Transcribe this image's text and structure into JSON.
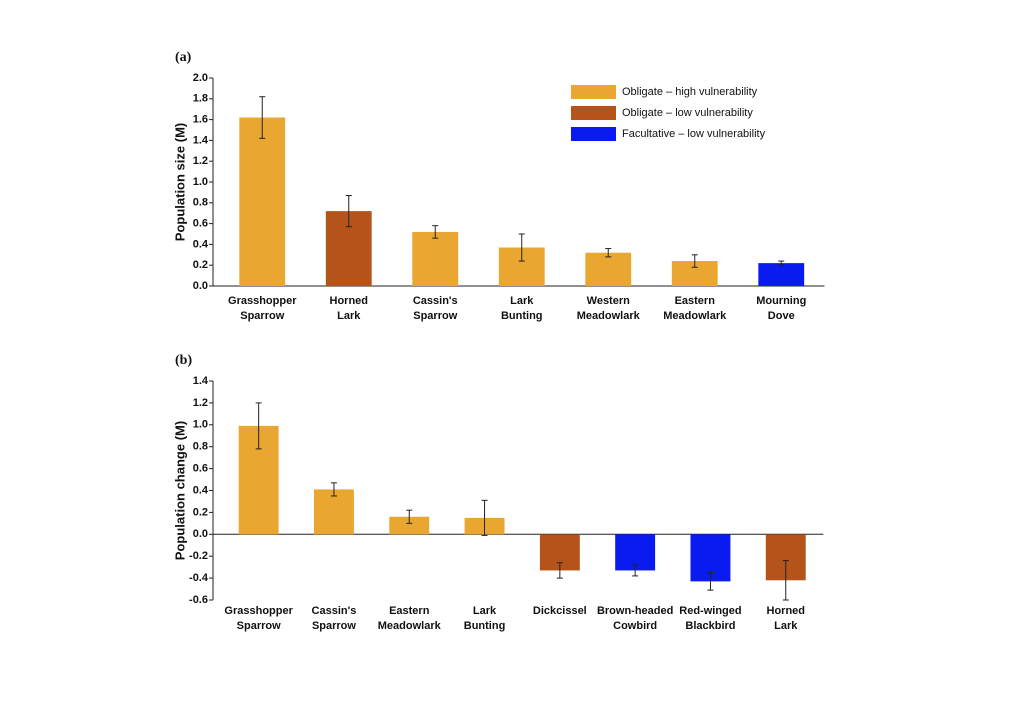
{
  "chart_data": [
    {
      "type": "bar",
      "panel_label": "(a)",
      "ylabel": "Population size (M)",
      "categories": [
        [
          "Grasshopper",
          "Sparrow"
        ],
        [
          "Horned",
          "Lark"
        ],
        [
          "Cassin's",
          "Sparrow"
        ],
        [
          "Lark",
          "Bunting"
        ],
        [
          "Western",
          "Meadowlark"
        ],
        [
          "Eastern",
          "Meadowlark"
        ],
        [
          "Mourning",
          "Dove"
        ]
      ],
      "values": [
        1.62,
        0.72,
        0.52,
        0.37,
        0.32,
        0.24,
        0.22
      ],
      "errors": [
        0.2,
        0.15,
        0.06,
        0.13,
        0.04,
        0.06,
        0.02
      ],
      "colors": [
        "#e9a630",
        "#b5541a",
        "#e9a630",
        "#e9a630",
        "#e9a630",
        "#e9a630",
        "#0a1bf0"
      ],
      "ylim": [
        0,
        2.0
      ],
      "yticks": [
        {
          "value": 0,
          "label": "0.0"
        },
        0.2,
        0.4,
        0.6,
        0.8,
        {
          "value": 1,
          "label": "1.0"
        },
        1.2,
        1.4,
        1.6,
        1.8,
        {
          "value": 2,
          "label": "2.0"
        }
      ],
      "legend": [
        {
          "name": "Obligate – high vulnerability",
          "color": "#e9a630"
        },
        {
          "name": "Obligate – low vulnerability",
          "color": "#b5541a"
        },
        {
          "name": "Facultative – low vulnerability",
          "color": "#0a1bf0"
        }
      ]
    },
    {
      "type": "bar",
      "panel_label": "(b)",
      "ylabel": "Population change (M)",
      "categories": [
        [
          "Grasshopper",
          "Sparrow"
        ],
        [
          "Cassin's",
          "Sparrow"
        ],
        [
          "Eastern",
          "Meadowlark"
        ],
        [
          "Lark",
          "Bunting"
        ],
        [
          "Dickcissel"
        ],
        [
          "Brown-headed",
          "Cowbird"
        ],
        [
          "Red-winged",
          "Blackbird"
        ],
        [
          "Horned",
          "Lark"
        ]
      ],
      "values": [
        0.99,
        0.41,
        0.16,
        0.15,
        -0.33,
        -0.33,
        -0.43,
        -0.42
      ],
      "errors": [
        0.21,
        0.06,
        0.06,
        0.16,
        0.07,
        0.05,
        0.08,
        0.18
      ],
      "colors": [
        "#e9a630",
        "#e9a630",
        "#e9a630",
        "#e9a630",
        "#b5541a",
        "#0a1bf0",
        "#0a1bf0",
        "#b5541a"
      ],
      "ylim": [
        -0.6,
        1.4
      ],
      "yticks": [
        -0.6,
        -0.4,
        -0.2,
        {
          "value": 0,
          "label": "0.0"
        },
        0.2,
        0.4,
        0.6,
        0.8,
        {
          "value": 1,
          "label": "1.0"
        },
        1.2,
        1.4
      ]
    }
  ]
}
